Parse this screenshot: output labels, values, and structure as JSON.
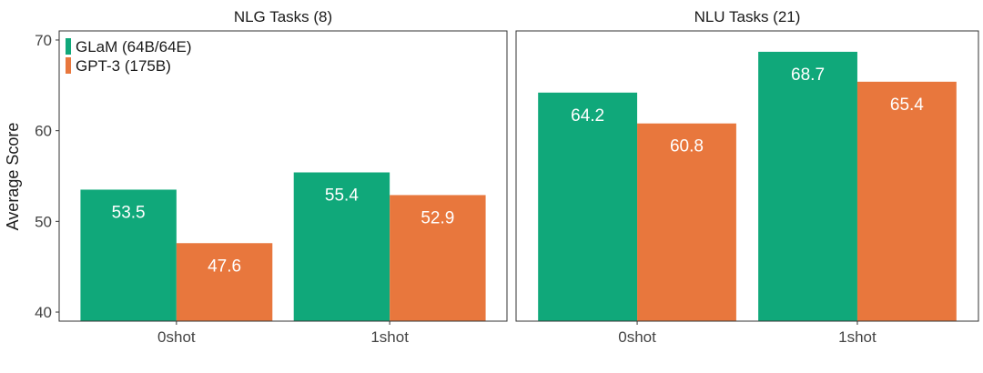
{
  "chart_data": {
    "type": "bar",
    "ylabel": "Average Score",
    "ylim": [
      39,
      71
    ],
    "yticks": [
      40,
      50,
      60,
      70
    ],
    "grid": false,
    "legend_position": "top-left",
    "colors": {
      "GLaM (64B/64E)": "#10a87a",
      "GPT-3 (175B)": "#e8773d"
    },
    "series_names": [
      "GLaM (64B/64E)",
      "GPT-3 (175B)"
    ],
    "panels": [
      {
        "title": "NLG Tasks (8)",
        "categories": [
          "0shot",
          "1shot"
        ],
        "series": [
          {
            "name": "GLaM (64B/64E)",
            "values": [
              53.5,
              55.4
            ]
          },
          {
            "name": "GPT-3 (175B)",
            "values": [
              47.6,
              52.9
            ]
          }
        ]
      },
      {
        "title": "NLU Tasks (21)",
        "categories": [
          "0shot",
          "1shot"
        ],
        "series": [
          {
            "name": "GLaM (64B/64E)",
            "values": [
              64.2,
              68.7
            ]
          },
          {
            "name": "GPT-3 (175B)",
            "values": [
              60.8,
              65.4
            ]
          }
        ]
      }
    ]
  }
}
